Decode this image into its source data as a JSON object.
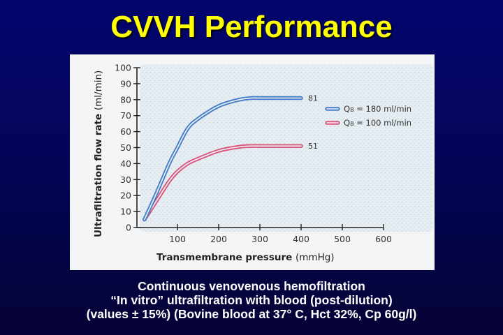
{
  "slide": {
    "title": "CVVH Performance",
    "background_top": "#03056e",
    "background_bottom": "#050335",
    "title_color": "#ffff00"
  },
  "caption": {
    "line1": "Continuous venovenous hemofiltration",
    "line2": "“In vitro” ultrafiltration with blood (post-dilution)",
    "line3": "(values ± 15%) (Bovine blood at 37° C, Hct 32%, Cp 60g/l)"
  },
  "chart_data": {
    "type": "line",
    "title": "",
    "xlabel": "Transmembrane pressure (mmHg)",
    "xlabel_bold": "Transmembrane pressure",
    "xlabel_unit": "(mmHg)",
    "ylabel": "Ultrafiltration flow rate (ml/min)",
    "ylabel_bold": "Ultrafiltration flow rate",
    "ylabel_unit": "(ml/min)",
    "xlim": [
      0,
      600
    ],
    "ylim": [
      0,
      100
    ],
    "x_ticks": [
      100,
      200,
      300,
      400,
      500,
      600
    ],
    "y_ticks": [
      0,
      10,
      20,
      30,
      40,
      50,
      60,
      70,
      80,
      90,
      100
    ],
    "grid": false,
    "legend_position": "right, upper-middle",
    "series": [
      {
        "name": "QB = 180 ml/min",
        "legend_q": "Q",
        "legend_sub": "B",
        "legend_rest": " = 180 ml/min",
        "color": "#4a7fc9",
        "end_label": "81",
        "x": [
          20,
          50,
          80,
          100,
          125,
          150,
          200,
          250,
          280,
          300,
          350,
          400
        ],
        "y": [
          5,
          22,
          40,
          50,
          62,
          68,
          76,
          80,
          81,
          81,
          81,
          81
        ]
      },
      {
        "name": "QB = 100 ml/min",
        "legend_q": "Q",
        "legend_sub": "B",
        "legend_rest": " = 100 ml/min",
        "color": "#d9587f",
        "end_label": "51",
        "x": [
          20,
          50,
          80,
          100,
          125,
          150,
          200,
          250,
          280,
          300,
          350,
          400
        ],
        "y": [
          5,
          17,
          29,
          35,
          40,
          43,
          48,
          50.5,
          51,
          51,
          51,
          51
        ]
      }
    ]
  }
}
